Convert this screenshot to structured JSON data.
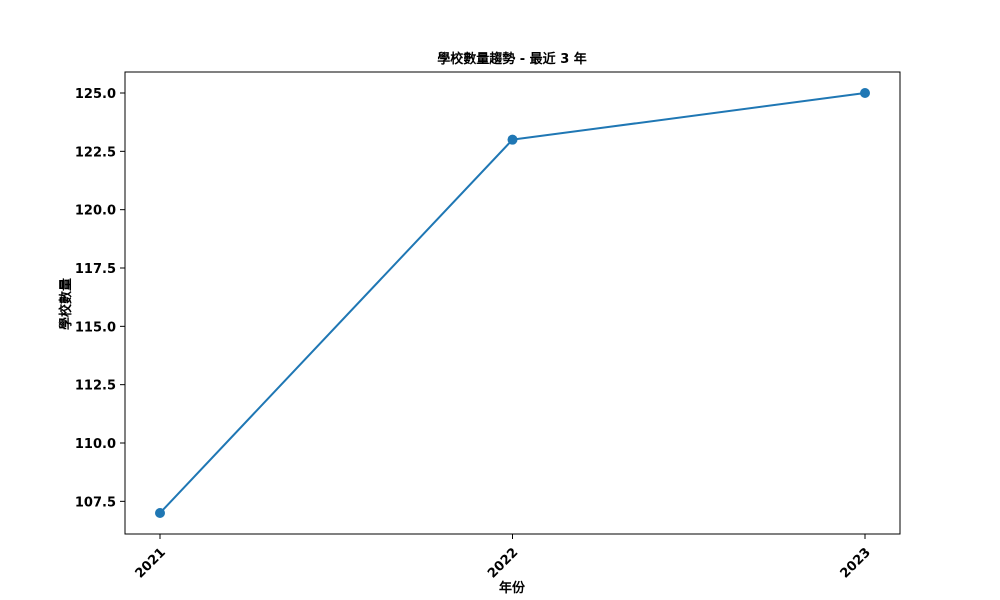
{
  "chart_data": {
    "type": "line",
    "title": "學校數量趨勢 - 最近 3 年",
    "xlabel": "年份",
    "ylabel": "學校數量",
    "categories": [
      "2021",
      "2022",
      "2023"
    ],
    "series": [
      {
        "values": [
          107,
          123,
          125
        ],
        "color": "#1f77b4",
        "marker": "circle"
      }
    ],
    "ylim": [
      106.1,
      125.9
    ],
    "yticks": [
      107.5,
      110.0,
      112.5,
      115.0,
      117.5,
      120.0,
      122.5,
      125.0
    ],
    "ytick_labels": [
      "107.5",
      "110.0",
      "112.5",
      "115.0",
      "117.5",
      "120.0",
      "122.5",
      "125.0"
    ],
    "x_tick_rotation": 45,
    "grid": false,
    "legend": false
  }
}
